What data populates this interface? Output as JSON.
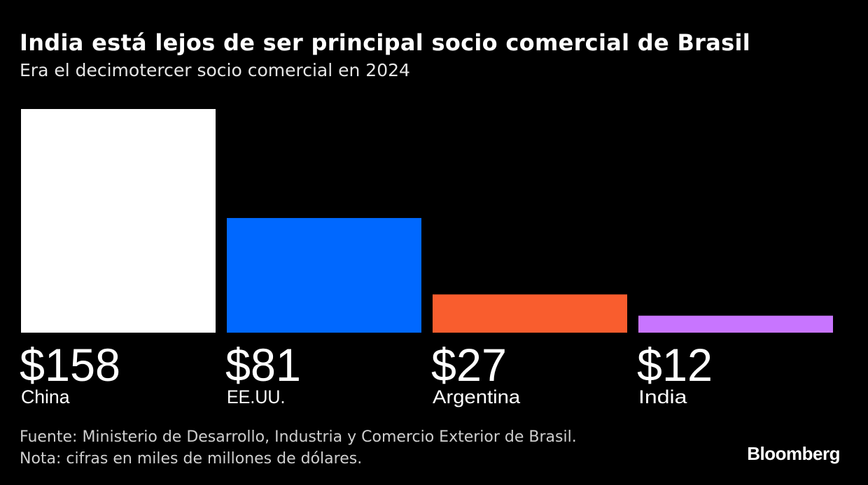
{
  "chart_data": {
    "type": "bar",
    "title": "India está lejos de ser principal socio comercial de Brasil",
    "subtitle": "Era el decimotercer socio comercial en 2024",
    "categories": [
      "China",
      "EE.UU.",
      "Argentina",
      "India"
    ],
    "values": [
      158,
      81,
      27,
      12
    ],
    "value_labels": [
      "$158",
      "$81",
      "$27",
      "$12"
    ],
    "colors": [
      "#ffffff",
      "#0068ff",
      "#f95d2e",
      "#c875ff"
    ],
    "ylim": [
      0,
      158
    ],
    "grid": false,
    "xlabel": "",
    "ylabel": ""
  },
  "footer": {
    "source": "Fuente: Ministerio de Desarrollo, Industria y Comercio Exterior de Brasil.",
    "note": "Nota: cifras en miles de millones de dólares."
  },
  "logo": "Bloomberg"
}
